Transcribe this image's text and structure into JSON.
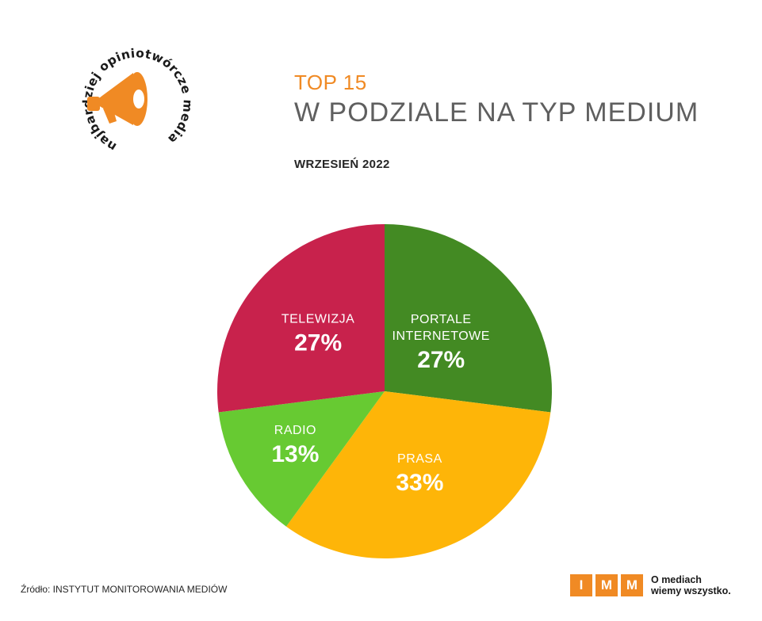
{
  "logo": {
    "arc_text": "najbardziej opiniotwórcze media",
    "icon": "megaphone-icon"
  },
  "header": {
    "eyebrow": "TOP 15",
    "title": "W PODZIALE NA TYP MEDIUM",
    "subtitle": "WRZESIEŃ 2022"
  },
  "colors": {
    "accent": "#F08A24",
    "title": "#5F5F5F",
    "portale": "#438A23",
    "prasa": "#FEB508",
    "radio": "#67CA32",
    "telewizja": "#C8224C"
  },
  "chart_data": {
    "type": "pie",
    "title": "",
    "start_angle_deg": 0,
    "direction": "clockwise",
    "slices": [
      {
        "label_lines": [
          "PORTALE",
          "INTERNETOWE"
        ],
        "value": 27,
        "value_label": "27%",
        "color": "#438A23"
      },
      {
        "label_lines": [
          "PRASA"
        ],
        "value": 33,
        "value_label": "33%",
        "color": "#FEB508"
      },
      {
        "label_lines": [
          "RADIO"
        ],
        "value": 13,
        "value_label": "13%",
        "color": "#67CA32"
      },
      {
        "label_lines": [
          "TELEWIZJA"
        ],
        "value": 27,
        "value_label": "27%",
        "color": "#C8224C"
      }
    ]
  },
  "footer": {
    "source": "Źródło: INSTYTUT MONITOROWANIA MEDIÓW",
    "imm_letters": [
      "I",
      "M",
      "M"
    ],
    "tagline_line1": "O mediach",
    "tagline_line2": "wiemy wszystko."
  }
}
